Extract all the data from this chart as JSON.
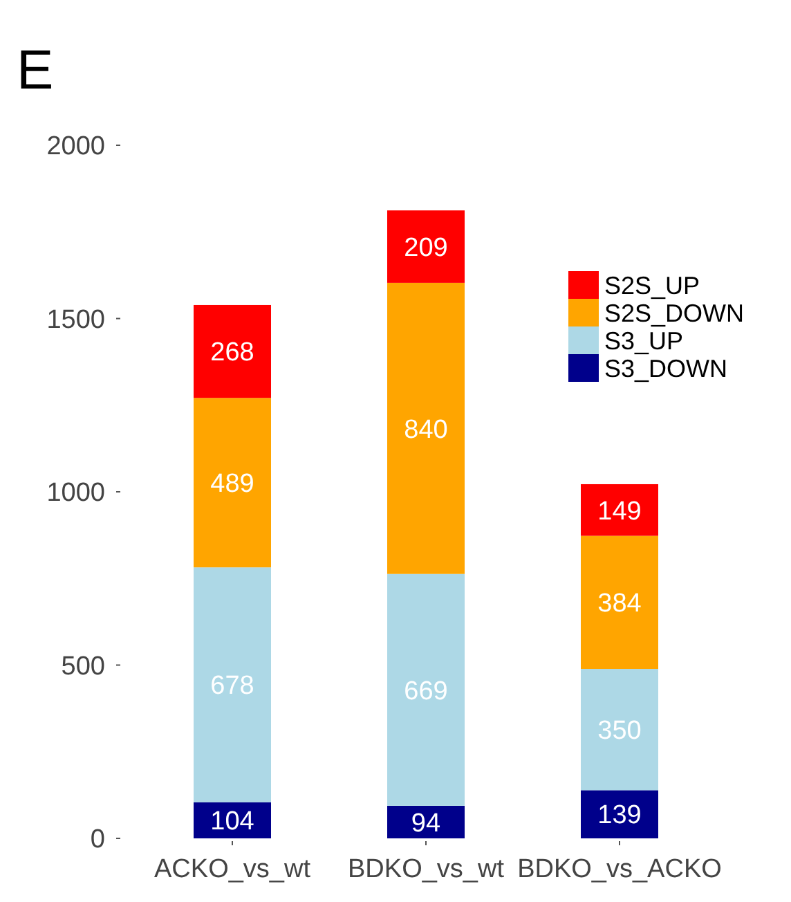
{
  "chart_data": {
    "type": "bar",
    "title": "E",
    "categories": [
      "ACKO_vs_wt",
      "BDKO_vs_wt",
      "BDKO_vs_ACKO"
    ],
    "stacked": true,
    "data_labels": true,
    "legend": "top right",
    "grid": false,
    "ylim": [
      0,
      2000
    ],
    "yticks": [
      0,
      500,
      1000,
      1500,
      2000
    ],
    "series": [
      {
        "name": "S3_DOWN",
        "color": "#00008b",
        "values": [
          104,
          94,
          139
        ]
      },
      {
        "name": "S3_UP",
        "color": "#add8e6",
        "values": [
          678,
          669,
          350
        ]
      },
      {
        "name": "S2S_DOWN",
        "color": "#ffa500",
        "values": [
          489,
          840,
          384
        ]
      },
      {
        "name": "S2S_UP",
        "color": "#ff0000",
        "values": [
          268,
          209,
          149
        ]
      }
    ]
  }
}
